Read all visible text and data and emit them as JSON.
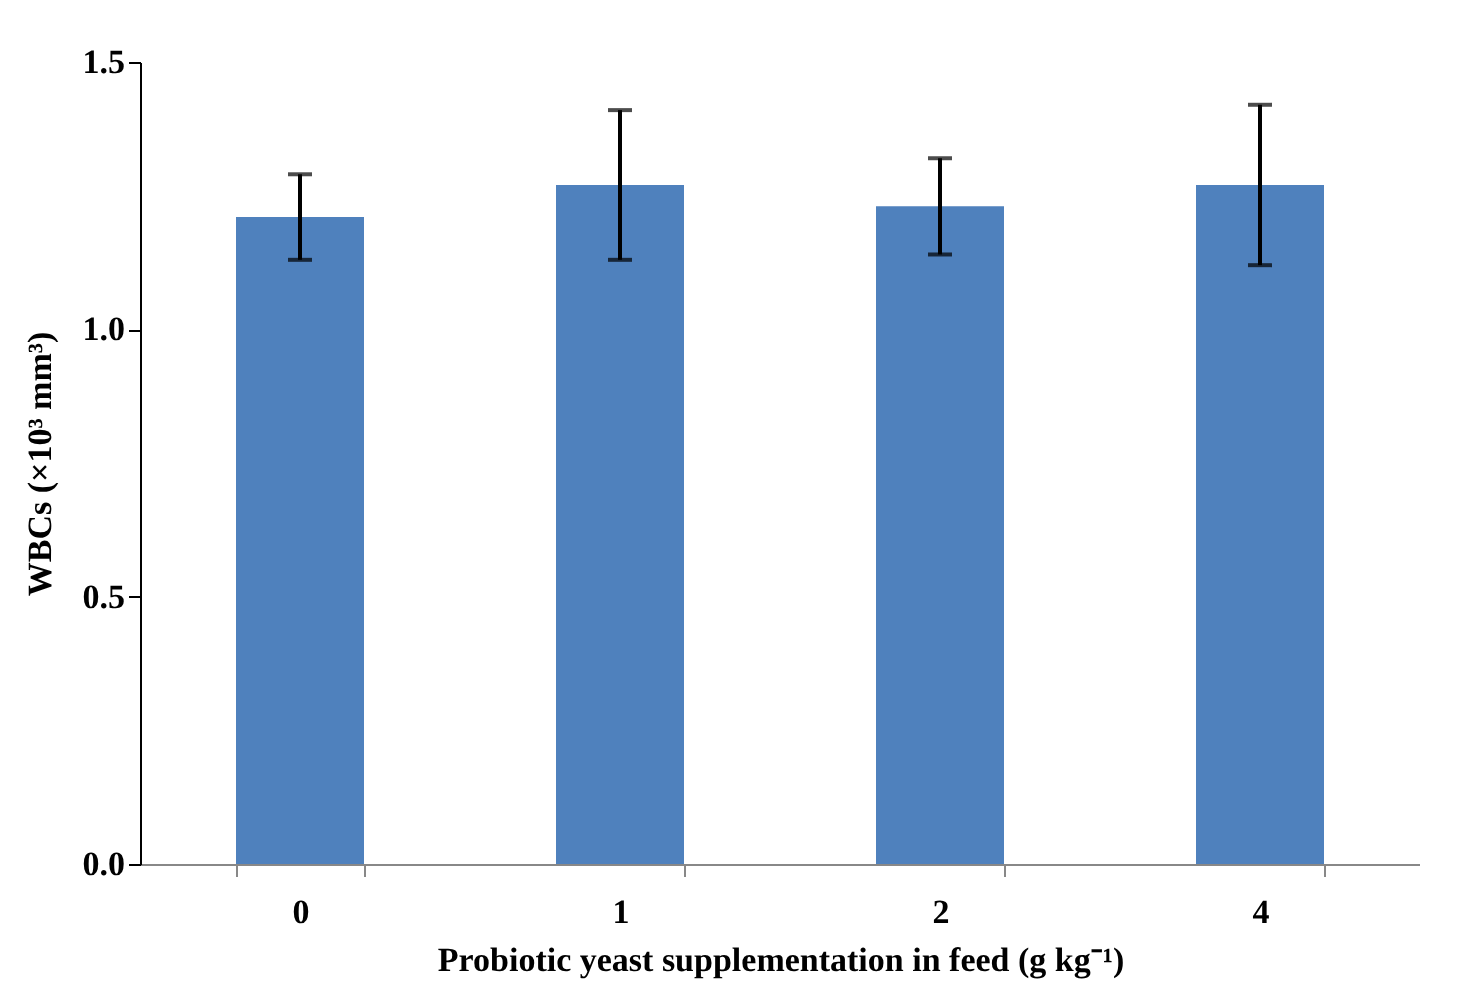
{
  "chart_data": {
    "type": "bar",
    "xlabel": "Probiotic yeast supplementation in feed (g kg⁻¹)",
    "ylabel": "WBCs (×10³ mm³)",
    "categories": [
      "0",
      "1",
      "2",
      "4"
    ],
    "values": [
      1.21,
      1.27,
      1.23,
      1.27
    ],
    "errors": [
      [
        1.13,
        1.29
      ],
      [
        1.13,
        1.41
      ],
      [
        1.14,
        1.32
      ],
      [
        1.12,
        1.42
      ]
    ],
    "color": "#4f81bd",
    "ylim": [
      0,
      1.5
    ],
    "yticks": [
      {
        "value": 0,
        "label": "0.0"
      },
      0.5,
      {
        "value": 1,
        "label": "1.0"
      },
      1.5
    ],
    "grid": false
  }
}
